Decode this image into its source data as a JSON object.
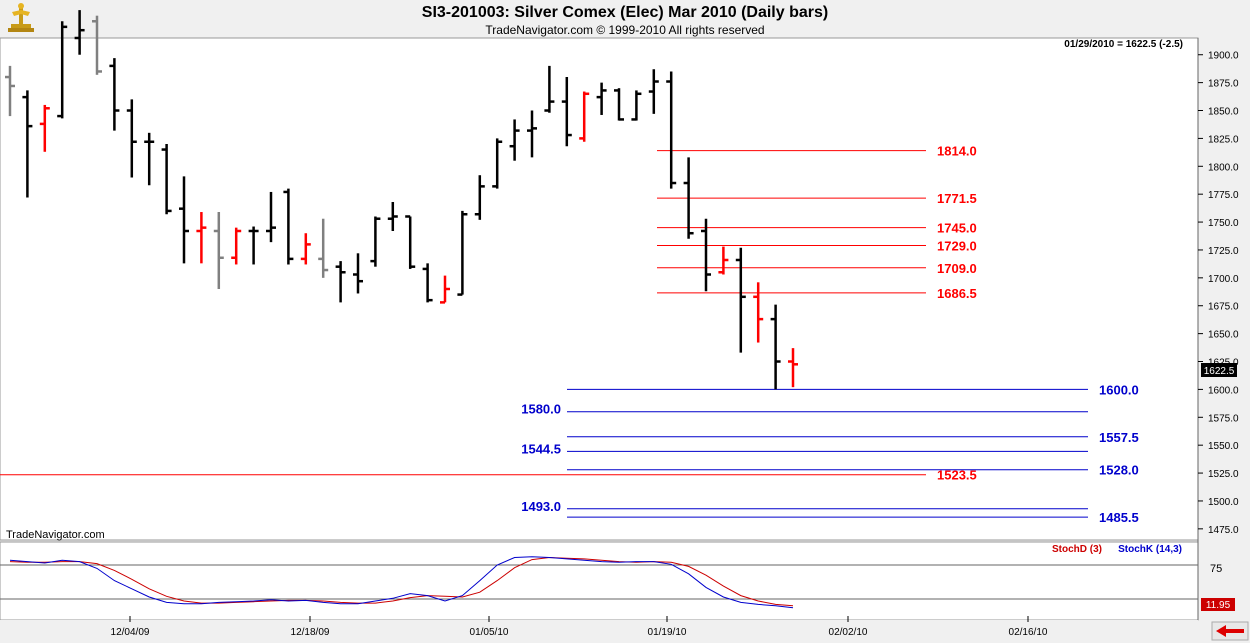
{
  "header": {
    "title": "SI3-201003:  Silver Comex (Elec) Mar 2010  (Daily bars)",
    "subtitle": "TradeNavigator.com © 1999-2010 All rights reserved",
    "logo_icon": "trade-navigator-logo-icon"
  },
  "chart_data": [
    {
      "type": "ohlc",
      "info_line": "01/29/2010 = 1622.5 (-2.5)",
      "watermark": "TradeNavigator.com",
      "last_price_label": "1622.5",
      "ylim": [
        1465,
        1915
      ],
      "yticks": [
        1475,
        1500,
        1525,
        1550,
        1575,
        1600,
        1625,
        1650,
        1675,
        1700,
        1725,
        1750,
        1775,
        1800,
        1825,
        1850,
        1875,
        1900
      ],
      "ytick_labels": [
        "1475.0",
        "1500.0",
        "1525.0",
        "1550.0",
        "1575.0",
        "1600.0",
        "1625.0",
        "1650.0",
        "1675.0",
        "1700.0",
        "1725.0",
        "1750.0",
        "1775.0",
        "1800.0",
        "1825.0",
        "1850.0",
        "1875.0",
        "1900.0"
      ],
      "colors": {
        "up": "#000000",
        "down": "#ff0000",
        "inside": "#808080",
        "red_level": "#ff0000",
        "blue_level": "#0000cc"
      },
      "bars": [
        {
          "date": "11/24/09",
          "o": 1880,
          "h": 1890,
          "l": 1845,
          "c": 1872,
          "col": "gray"
        },
        {
          "date": "11/25/09",
          "o": 1862,
          "h": 1868,
          "l": 1772,
          "c": 1836,
          "col": "black"
        },
        {
          "date": "11/27/09",
          "o": 1838,
          "h": 1855,
          "l": 1813,
          "c": 1852,
          "col": "red"
        },
        {
          "date": "11/30/09",
          "o": 1845,
          "h": 1930,
          "l": 1843,
          "c": 1925,
          "col": "black"
        },
        {
          "date": "12/01/09",
          "o": 1915,
          "h": 1940,
          "l": 1900,
          "c": 1922,
          "col": "black"
        },
        {
          "date": "12/02/09",
          "o": 1930,
          "h": 1935,
          "l": 1882,
          "c": 1885,
          "col": "gray"
        },
        {
          "date": "12/03/09",
          "o": 1890,
          "h": 1897,
          "l": 1832,
          "c": 1850,
          "col": "black"
        },
        {
          "date": "12/04/09",
          "o": 1850,
          "h": 1860,
          "l": 1790,
          "c": 1822,
          "col": "black"
        },
        {
          "date": "12/07/09",
          "o": 1822,
          "h": 1830,
          "l": 1783,
          "c": 1822,
          "col": "black"
        },
        {
          "date": "12/08/09",
          "o": 1815,
          "h": 1820,
          "l": 1757,
          "c": 1760,
          "col": "black"
        },
        {
          "date": "12/09/09",
          "o": 1762,
          "h": 1791,
          "l": 1713,
          "c": 1742,
          "col": "black"
        },
        {
          "date": "12/10/09",
          "o": 1742,
          "h": 1759,
          "l": 1713,
          "c": 1745,
          "col": "red"
        },
        {
          "date": "12/11/09",
          "o": 1742,
          "h": 1759,
          "l": 1690,
          "c": 1718,
          "col": "gray"
        },
        {
          "date": "12/14/09",
          "o": 1718,
          "h": 1745,
          "l": 1712,
          "c": 1742,
          "col": "red"
        },
        {
          "date": "12/15/09",
          "o": 1742,
          "h": 1746,
          "l": 1712,
          "c": 1742,
          "col": "black"
        },
        {
          "date": "12/16/09",
          "o": 1742,
          "h": 1777,
          "l": 1732,
          "c": 1745,
          "col": "black"
        },
        {
          "date": "12/17/09",
          "o": 1777,
          "h": 1780,
          "l": 1712,
          "c": 1717,
          "col": "black"
        },
        {
          "date": "12/18/09",
          "o": 1717,
          "h": 1740,
          "l": 1712,
          "c": 1730,
          "col": "red"
        },
        {
          "date": "12/21/09",
          "o": 1717,
          "h": 1753,
          "l": 1700,
          "c": 1707,
          "col": "gray"
        },
        {
          "date": "12/22/09",
          "o": 1710,
          "h": 1715,
          "l": 1678,
          "c": 1705,
          "col": "black"
        },
        {
          "date": "12/23/09",
          "o": 1703,
          "h": 1722,
          "l": 1686,
          "c": 1697,
          "col": "black"
        },
        {
          "date": "12/24/09",
          "o": 1715,
          "h": 1755,
          "l": 1710,
          "c": 1753,
          "col": "black"
        },
        {
          "date": "12/28/09",
          "o": 1753,
          "h": 1768,
          "l": 1742,
          "c": 1755,
          "col": "black"
        },
        {
          "date": "12/29/09",
          "o": 1755,
          "h": 1755,
          "l": 1708,
          "c": 1710,
          "col": "black"
        },
        {
          "date": "12/30/09",
          "o": 1708,
          "h": 1713,
          "l": 1678,
          "c": 1680,
          "col": "black"
        },
        {
          "date": "12/31/09",
          "o": 1678,
          "h": 1702,
          "l": 1678,
          "c": 1690,
          "col": "red"
        },
        {
          "date": "01/04/10",
          "o": 1685,
          "h": 1760,
          "l": 1685,
          "c": 1757,
          "col": "black"
        },
        {
          "date": "01/05/10",
          "o": 1757,
          "h": 1792,
          "l": 1752,
          "c": 1782,
          "col": "black"
        },
        {
          "date": "01/06/10",
          "o": 1782,
          "h": 1825,
          "l": 1780,
          "c": 1822,
          "col": "black"
        },
        {
          "date": "01/07/10",
          "o": 1818,
          "h": 1842,
          "l": 1805,
          "c": 1832,
          "col": "black"
        },
        {
          "date": "01/08/10",
          "o": 1832,
          "h": 1850,
          "l": 1808,
          "c": 1834,
          "col": "black"
        },
        {
          "date": "01/11/10",
          "o": 1850,
          "h": 1890,
          "l": 1848,
          "c": 1858,
          "col": "black"
        },
        {
          "date": "01/12/10",
          "o": 1858,
          "h": 1880,
          "l": 1818,
          "c": 1828,
          "col": "black"
        },
        {
          "date": "01/13/10",
          "o": 1825,
          "h": 1867,
          "l": 1822,
          "c": 1865,
          "col": "red"
        },
        {
          "date": "01/14/10",
          "o": 1862,
          "h": 1875,
          "l": 1846,
          "c": 1868,
          "col": "black"
        },
        {
          "date": "01/15/10",
          "o": 1868,
          "h": 1870,
          "l": 1841,
          "c": 1842,
          "col": "black"
        },
        {
          "date": "01/18/10",
          "o": 1842,
          "h": 1868,
          "l": 1841,
          "c": 1865,
          "col": "black"
        },
        {
          "date": "01/19/10",
          "o": 1867,
          "h": 1887,
          "l": 1847,
          "c": 1876,
          "col": "black"
        },
        {
          "date": "01/20/10",
          "o": 1876,
          "h": 1885,
          "l": 1780,
          "c": 1785,
          "col": "black"
        },
        {
          "date": "01/21/10",
          "o": 1785,
          "h": 1808,
          "l": 1735,
          "c": 1740,
          "col": "black"
        },
        {
          "date": "01/22/10",
          "o": 1742,
          "h": 1753,
          "l": 1688,
          "c": 1703,
          "col": "black"
        },
        {
          "date": "01/25/10",
          "o": 1705,
          "h": 1728,
          "l": 1703,
          "c": 1716,
          "col": "red"
        },
        {
          "date": "01/26/10",
          "o": 1716,
          "h": 1727,
          "l": 1633,
          "c": 1683,
          "col": "black"
        },
        {
          "date": "01/27/10",
          "o": 1683,
          "h": 1696,
          "l": 1642,
          "c": 1663,
          "col": "red"
        },
        {
          "date": "01/28/10",
          "o": 1663,
          "h": 1676,
          "l": 1600,
          "c": 1625,
          "col": "black"
        },
        {
          "date": "01/29/10",
          "o": 1625,
          "h": 1637,
          "l": 1602,
          "c": 1622.5,
          "col": "red"
        }
      ],
      "levels": [
        {
          "value": 1814.0,
          "label": "1814.0",
          "color": "red"
        },
        {
          "value": 1771.5,
          "label": "1771.5",
          "color": "red"
        },
        {
          "value": 1745.0,
          "label": "1745.0",
          "color": "red"
        },
        {
          "value": 1729.0,
          "label": "1729.0",
          "color": "red"
        },
        {
          "value": 1709.0,
          "label": "1709.0",
          "color": "red"
        },
        {
          "value": 1686.5,
          "label": "1686.5",
          "color": "red"
        },
        {
          "value": 1600.0,
          "label": "1600.0",
          "color": "blue"
        },
        {
          "value": 1580.0,
          "label": "1580.0",
          "color": "blue"
        },
        {
          "value": 1557.5,
          "label": "1557.5",
          "color": "blue"
        },
        {
          "value": 1544.5,
          "label": "1544.5",
          "color": "blue"
        },
        {
          "value": 1528.0,
          "label": "1528.0",
          "color": "blue"
        },
        {
          "value": 1523.5,
          "label": "1523.5",
          "color": "red"
        },
        {
          "value": 1493.0,
          "label": "1493.0",
          "color": "blue"
        },
        {
          "value": 1485.5,
          "label": "1485.5",
          "color": "blue"
        }
      ]
    },
    {
      "type": "line",
      "legend": [
        {
          "name": "StochD (3)",
          "color": "#cc0000"
        },
        {
          "name": "StochK (14,3)",
          "color": "#0000cc"
        }
      ],
      "ylim": [
        0,
        100
      ],
      "reference_lines": [
        75,
        25
      ],
      "ytick_labels": [
        "75"
      ],
      "last_value_label": "11.95",
      "xtick_labels": [
        "12/04/09",
        "12/18/09",
        "01/05/10",
        "01/19/10",
        "02/02/10",
        "02/16/10"
      ],
      "stoch_k": [
        82,
        80,
        78,
        82,
        80,
        70,
        52,
        40,
        28,
        20,
        18,
        18,
        20,
        21,
        22,
        24,
        22,
        23,
        20,
        18,
        18,
        22,
        26,
        33,
        30,
        22,
        30,
        52,
        75,
        86,
        87,
        86,
        84,
        82,
        80,
        79,
        80,
        80,
        76,
        62,
        42,
        28,
        20,
        17,
        15,
        12
      ],
      "stoch_d": [
        80,
        79,
        79,
        80,
        80,
        77,
        67,
        54,
        40,
        29,
        22,
        19,
        19,
        20,
        21,
        22,
        23,
        23,
        22,
        20,
        19,
        19,
        22,
        27,
        30,
        29,
        28,
        35,
        52,
        71,
        83,
        86,
        85,
        84,
        82,
        80,
        79,
        80,
        79,
        73,
        60,
        44,
        30,
        22,
        17,
        15
      ]
    }
  ]
}
